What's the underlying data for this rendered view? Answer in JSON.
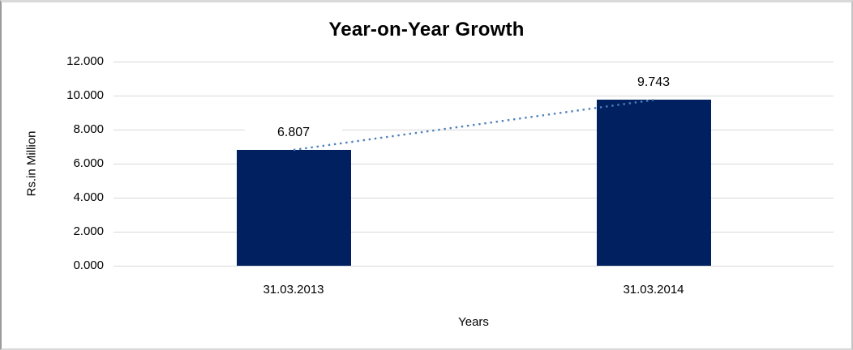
{
  "chart_data": {
    "type": "bar",
    "title": "Year-on-Year Growth",
    "xlabel": "Years",
    "ylabel": "Rs.in Million",
    "categories": [
      "31.03.2013",
      "31.03.2014"
    ],
    "values": [
      6.807,
      9.743
    ],
    "value_labels": [
      "6.807",
      "9.743"
    ],
    "ylim": [
      0,
      12
    ],
    "ytick_interval": 2,
    "ytick_labels": [
      "0.000",
      "2.000",
      "4.000",
      "6.000",
      "8.000",
      "10.000",
      "12.000"
    ],
    "grid": true,
    "legend": "none",
    "bar_color": "#002060",
    "gridline_color": "#d9d9d9",
    "trendline": {
      "type": "linear",
      "style": "dotted",
      "color": "#4f81bd",
      "connects": [
        "31.03.2013",
        "31.03.2014"
      ]
    }
  }
}
